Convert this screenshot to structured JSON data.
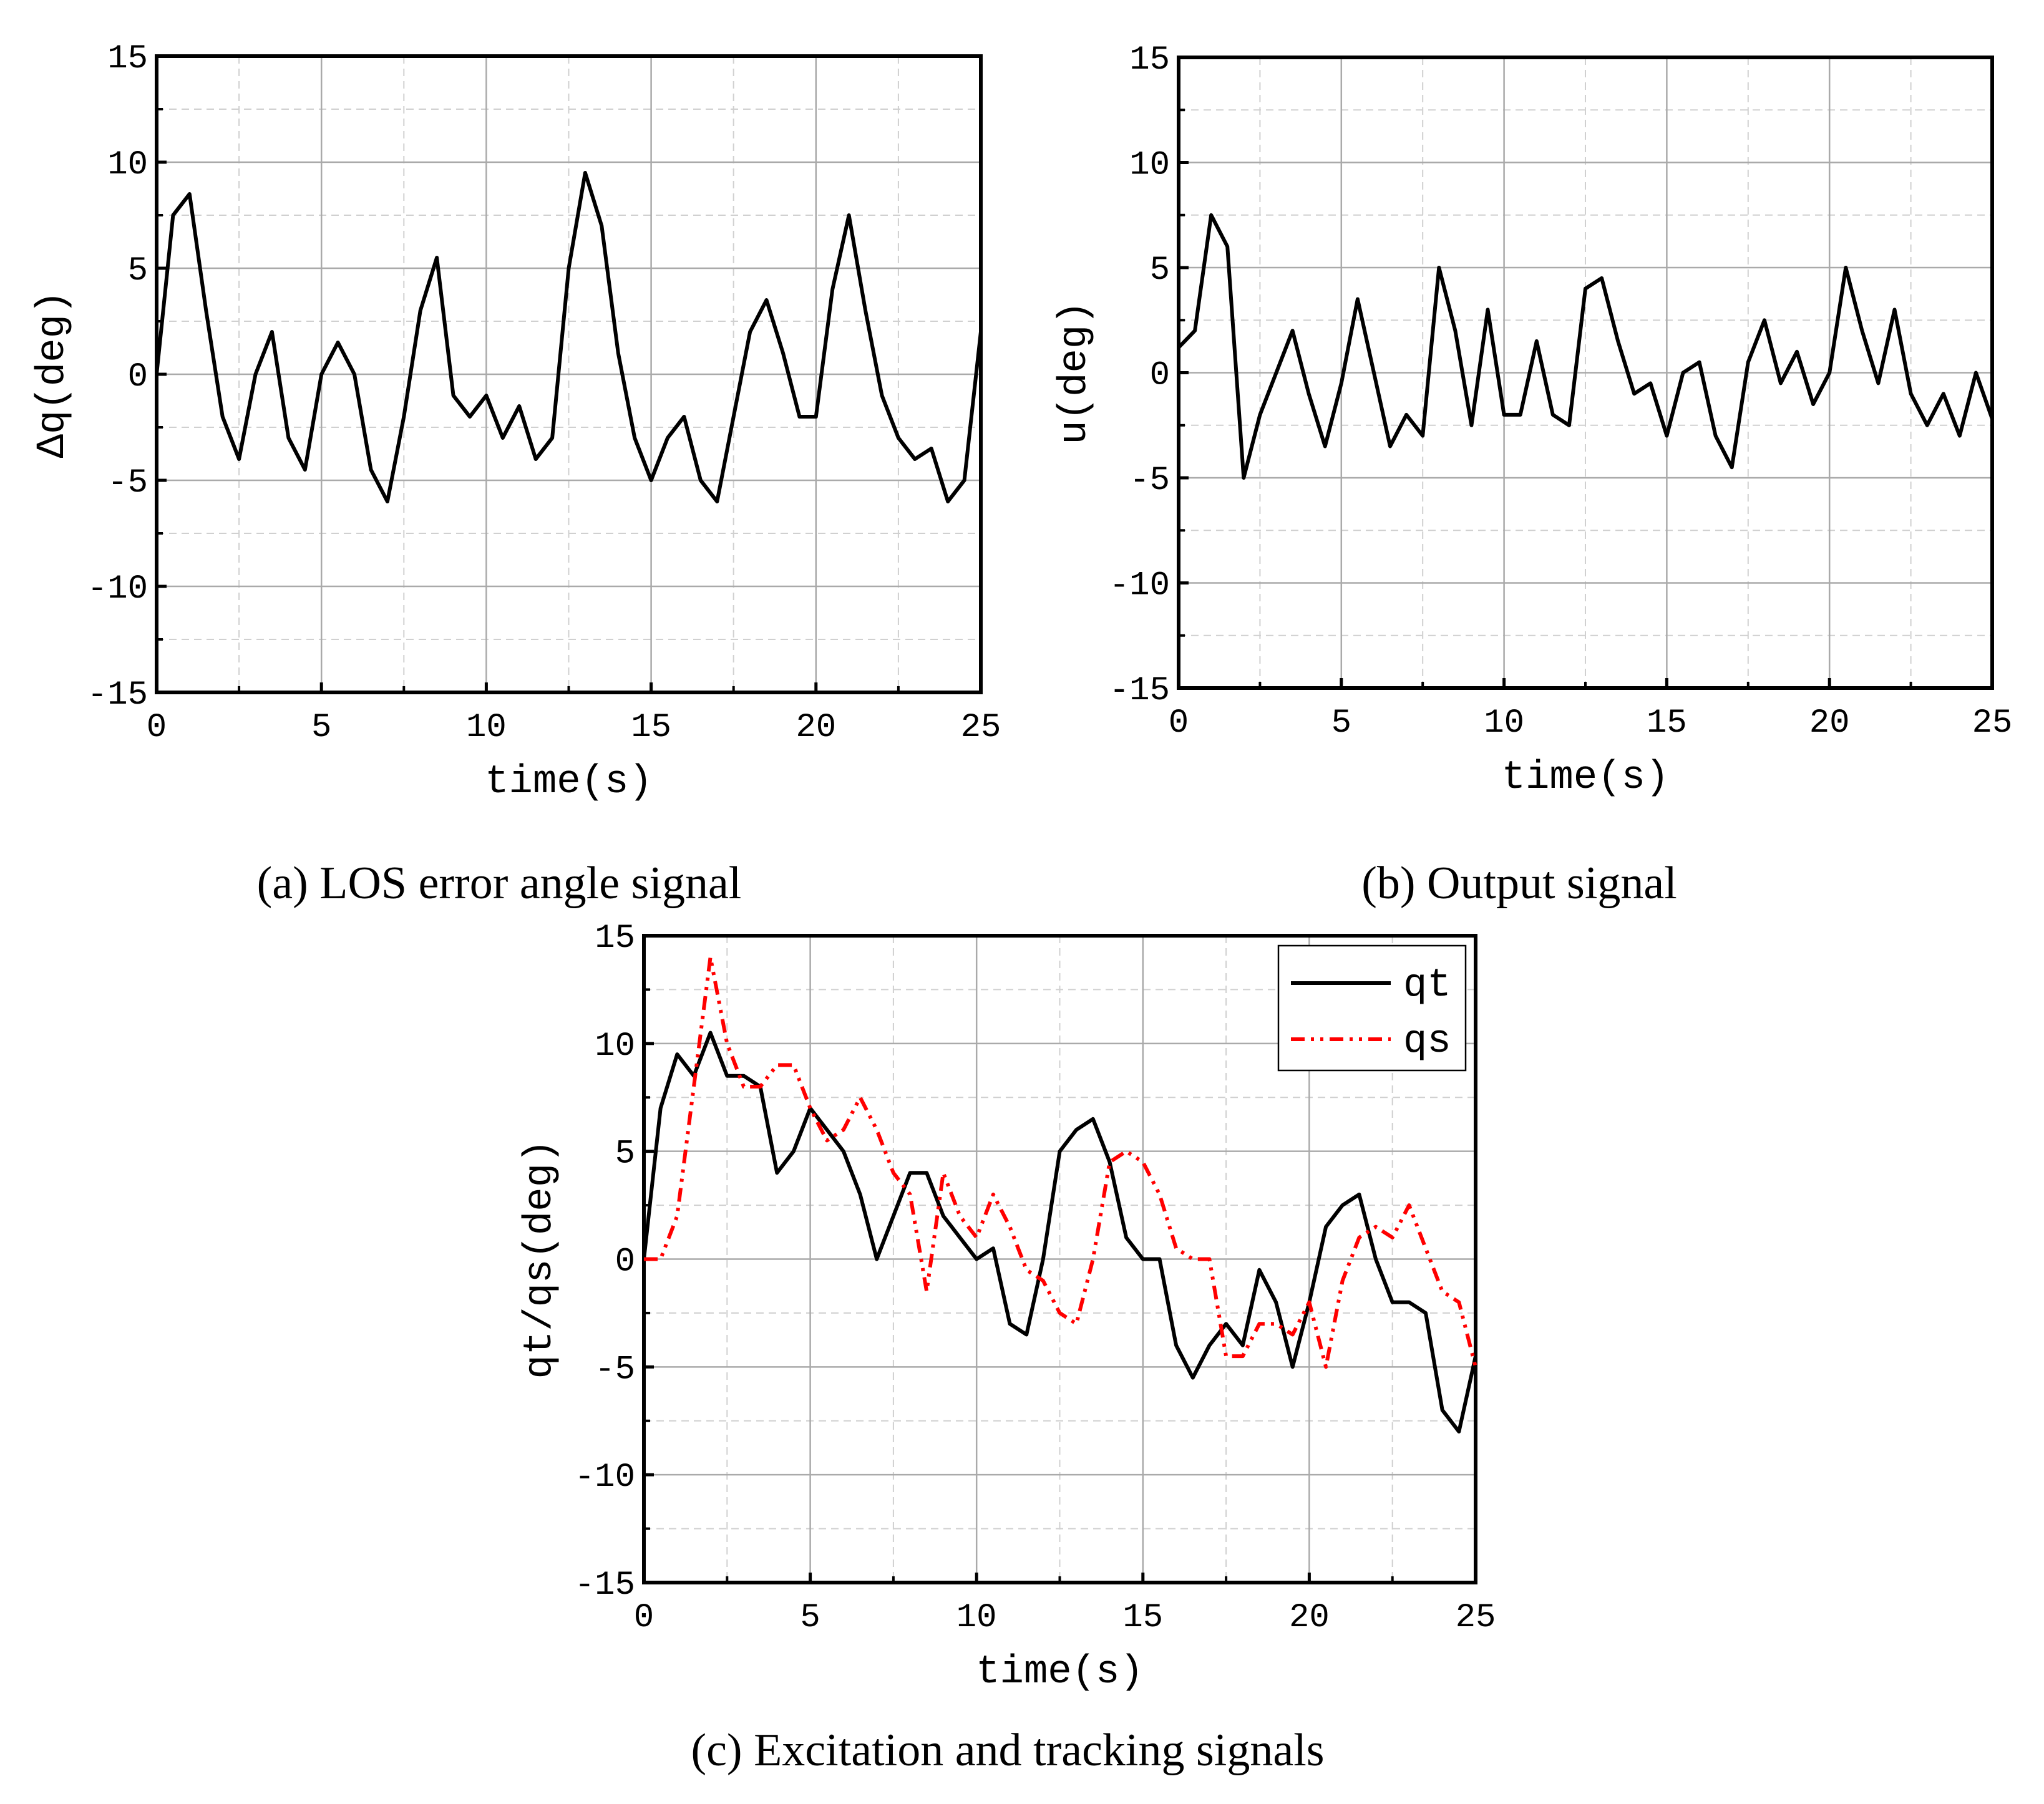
{
  "chart_data": [
    {
      "type": "line",
      "caption": "(a) LOS error angle signal",
      "xlabel": "time(s)",
      "ylabel": "Δq(deg)",
      "xlim": [
        0,
        25
      ],
      "ylim": [
        -15,
        15
      ],
      "xticks": [
        0,
        5,
        10,
        15,
        20,
        25
      ],
      "yticks": [
        -15,
        -10,
        -5,
        0,
        5,
        10,
        15
      ],
      "minor_xticks": [
        2.5,
        7.5,
        12.5,
        17.5,
        22.5
      ],
      "minor_yticks": [
        -12.5,
        -7.5,
        -2.5,
        2.5,
        7.5,
        12.5
      ],
      "grid": true,
      "x": [
        0,
        0.5,
        1,
        1.5,
        2,
        2.5,
        3,
        3.5,
        4,
        4.5,
        5,
        5.5,
        6,
        6.5,
        7,
        7.5,
        8,
        8.5,
        9,
        9.5,
        10,
        10.5,
        11,
        11.5,
        12,
        12.5,
        13,
        13.5,
        14,
        14.5,
        15,
        15.5,
        16,
        16.5,
        17,
        17.5,
        18,
        18.5,
        19,
        19.5,
        20,
        20.5,
        21,
        21.5,
        22,
        22.5,
        23,
        23.5,
        24,
        24.5,
        25
      ],
      "series": [
        {
          "color": "#000000",
          "dash": "solid",
          "values": [
            0,
            7.5,
            8.5,
            3,
            -2,
            -4,
            0,
            2,
            -3,
            -4.5,
            0,
            1.5,
            0,
            -4.5,
            -6,
            -2,
            3,
            5.5,
            -1,
            -2,
            -1,
            -3,
            -1.5,
            -4,
            -3,
            5,
            9.5,
            7,
            1,
            -3,
            -5,
            -3,
            -2,
            -5,
            -6,
            -2,
            2,
            3.5,
            1,
            -2,
            -2,
            4,
            7.5,
            3,
            -1,
            -3,
            -4,
            -3.5,
            -6,
            -5,
            2
          ]
        }
      ]
    },
    {
      "type": "line",
      "caption": "(b) Output signal",
      "xlabel": "time(s)",
      "ylabel": "u(deg)",
      "xlim": [
        0,
        25
      ],
      "ylim": [
        -15,
        15
      ],
      "xticks": [
        0,
        5,
        10,
        15,
        20,
        25
      ],
      "yticks": [
        -15,
        -10,
        -5,
        0,
        5,
        10,
        15
      ],
      "minor_xticks": [
        2.5,
        7.5,
        12.5,
        17.5,
        22.5
      ],
      "minor_yticks": [
        -12.5,
        -7.5,
        -2.5,
        2.5,
        7.5,
        12.5
      ],
      "grid": true,
      "x": [
        0,
        0.5,
        1,
        1.5,
        2,
        2.5,
        3,
        3.5,
        4,
        4.5,
        5,
        5.5,
        6,
        6.5,
        7,
        7.5,
        8,
        8.5,
        9,
        9.5,
        10,
        10.5,
        11,
        11.5,
        12,
        12.5,
        13,
        13.5,
        14,
        14.5,
        15,
        15.5,
        16,
        16.5,
        17,
        17.5,
        18,
        18.5,
        19,
        19.5,
        20,
        20.5,
        21,
        21.5,
        22,
        22.5,
        23,
        23.5,
        24,
        24.5,
        25
      ],
      "series": [
        {
          "color": "#000000",
          "dash": "solid",
          "values": [
            1.2,
            2,
            7.5,
            6,
            -5,
            -2,
            0,
            2,
            -1,
            -3.5,
            -0.5,
            3.5,
            0,
            -3.5,
            -2,
            -3,
            5,
            2,
            -2.5,
            3,
            -2,
            -2,
            1.5,
            -2,
            -2.5,
            4,
            4.5,
            1.5,
            -1,
            -0.5,
            -3,
            0,
            0.5,
            -3,
            -4.5,
            0.5,
            2.5,
            -0.5,
            1,
            -1.5,
            0,
            5,
            2,
            -0.5,
            3,
            -1,
            -2.5,
            -1,
            -3,
            0,
            -2.2
          ]
        }
      ]
    },
    {
      "type": "line",
      "caption": "(c) Excitation and tracking signals",
      "xlabel": "time(s)",
      "ylabel": "qt/qs(deg)",
      "xlim": [
        0,
        25
      ],
      "ylim": [
        -15,
        15
      ],
      "xticks": [
        0,
        5,
        10,
        15,
        20,
        25
      ],
      "yticks": [
        -15,
        -10,
        -5,
        0,
        5,
        10,
        15
      ],
      "minor_xticks": [
        2.5,
        7.5,
        12.5,
        17.5,
        22.5
      ],
      "minor_yticks": [
        -12.5,
        -7.5,
        -2.5,
        2.5,
        7.5,
        12.5
      ],
      "grid": true,
      "legend": "upper right",
      "x": [
        0,
        0.5,
        1,
        1.5,
        2,
        2.5,
        3,
        3.5,
        4,
        4.5,
        5,
        5.5,
        6,
        6.5,
        7,
        7.5,
        8,
        8.5,
        9,
        9.5,
        10,
        10.5,
        11,
        11.5,
        12,
        12.5,
        13,
        13.5,
        14,
        14.5,
        15,
        15.5,
        16,
        16.5,
        17,
        17.5,
        18,
        18.5,
        19,
        19.5,
        20,
        20.5,
        21,
        21.5,
        22,
        22.5,
        23,
        23.5,
        24,
        24.5,
        25
      ],
      "series": [
        {
          "name": "qt",
          "color": "#000000",
          "dash": "solid",
          "values": [
            0,
            7,
            9.5,
            8.5,
            10.5,
            8.5,
            8.5,
            8,
            4,
            5,
            7,
            6,
            5,
            3,
            0,
            2,
            4,
            4,
            2,
            1,
            0,
            0.5,
            -3,
            -3.5,
            0,
            5,
            6,
            6.5,
            4.5,
            1,
            0,
            0,
            -4,
            -5.5,
            -4,
            -3,
            -4,
            -0.5,
            -2,
            -5,
            -2,
            1.5,
            2.5,
            3,
            0,
            -2,
            -2,
            -2.5,
            -7,
            -8,
            -4.5
          ]
        },
        {
          "name": "qs",
          "color": "#ff0000",
          "dash": "dashdot",
          "values": [
            0,
            0,
            2,
            8,
            14,
            10,
            8,
            8,
            9,
            9,
            7,
            5.5,
            6,
            7.5,
            6,
            4,
            3,
            -1.5,
            4,
            2,
            1,
            3,
            1.5,
            -0.5,
            -1,
            -2.5,
            -3,
            0,
            4.5,
            5,
            4.5,
            3,
            0.5,
            0,
            0,
            -4.5,
            -4.5,
            -3,
            -3,
            -3.5,
            -2,
            -5,
            -1,
            1,
            1.5,
            1,
            2.5,
            0.5,
            -1.5,
            -2,
            -5
          ]
        }
      ]
    }
  ]
}
